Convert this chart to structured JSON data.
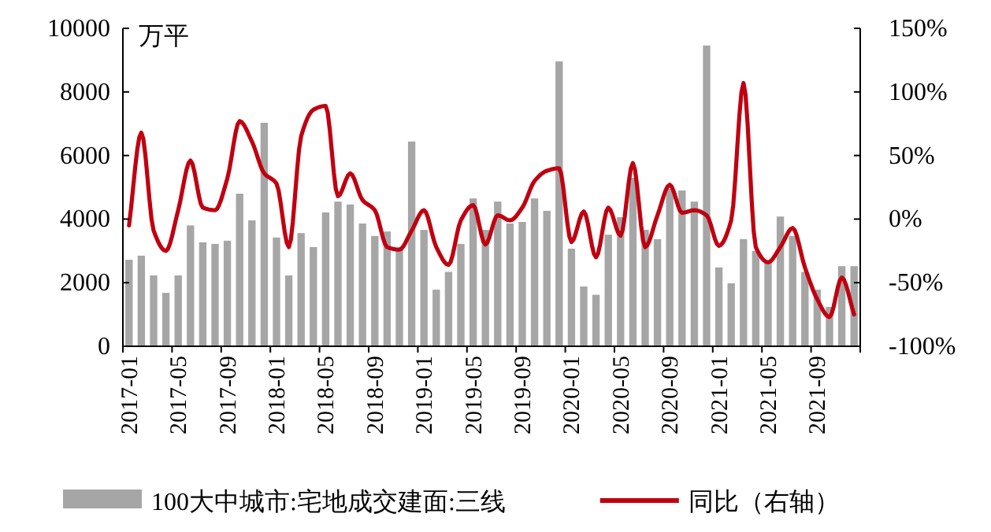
{
  "chart_data": {
    "type": "bar",
    "ylabel": "万平",
    "categories": [
      "2017-01",
      null,
      null,
      null,
      "2017-05",
      null,
      null,
      null,
      "2017-09",
      null,
      null,
      null,
      "2018-01",
      null,
      null,
      null,
      "2018-05",
      null,
      null,
      null,
      "2018-09",
      null,
      null,
      null,
      "2019-01",
      null,
      null,
      null,
      "2019-05",
      null,
      null,
      null,
      "2019-09",
      null,
      null,
      null,
      "2020-01",
      null,
      null,
      null,
      "2020-05",
      null,
      null,
      null,
      "2020-09",
      null,
      null,
      null,
      "2021-01",
      null,
      null,
      null,
      "2021-05",
      null,
      null,
      null,
      "2021-09",
      null,
      null,
      null
    ],
    "series": [
      {
        "name": "100大中城市:宅地成交建面:三线",
        "color": "#a6a6a6",
        "values": [
          2720,
          2850,
          2230,
          1680,
          2230,
          3800,
          3270,
          3220,
          3320,
          4800,
          3960,
          7030,
          3420,
          2230,
          3560,
          3120,
          4210,
          4550,
          4460,
          3860,
          3470,
          3610,
          3050,
          6440,
          3660,
          1780,
          2340,
          3220,
          4650,
          3660,
          4550,
          3860,
          3910,
          4650,
          4260,
          8960,
          3070,
          1880,
          1620,
          3510,
          4060,
          5300,
          3660,
          3370,
          4950,
          4900,
          4550,
          9460,
          2480,
          1980,
          3370,
          3000,
          2700,
          4080,
          3470,
          2340,
          1780,
          1240,
          2520,
          2520
        ]
      },
      {
        "name": "同比（右轴）",
        "type": "line",
        "axis": "y2",
        "color": "#c00010",
        "values": [
          -5,
          68,
          -9,
          -25,
          7,
          46,
          9,
          7,
          32,
          77,
          61,
          36,
          28,
          -22,
          65,
          86,
          89,
          18,
          36,
          15,
          7,
          -22,
          -24,
          -9,
          7,
          -22,
          -36,
          -1,
          11,
          -20,
          3,
          -1,
          9,
          30,
          38,
          40,
          -18,
          6,
          -30,
          9,
          -13,
          44,
          -22,
          3,
          27,
          5,
          7,
          3,
          -21,
          -1,
          107,
          -22,
          -34,
          -22,
          -7,
          -38,
          -63,
          -77,
          -46,
          -75
        ]
      }
    ],
    "ylim": [
      0,
      10000
    ],
    "yticks": [
      0,
      2000,
      4000,
      6000,
      8000,
      10000
    ],
    "y2lim": [
      -100,
      150
    ],
    "y2ticks": [
      {
        "value": -100,
        "label": "-100%"
      },
      {
        "value": -50,
        "label": "-50%"
      },
      {
        "value": 0,
        "label": "0%"
      },
      {
        "value": 50,
        "label": "50%"
      },
      {
        "value": 100,
        "label": "100%"
      },
      {
        "value": 150,
        "label": "150%"
      }
    ],
    "legend": "bottom"
  }
}
